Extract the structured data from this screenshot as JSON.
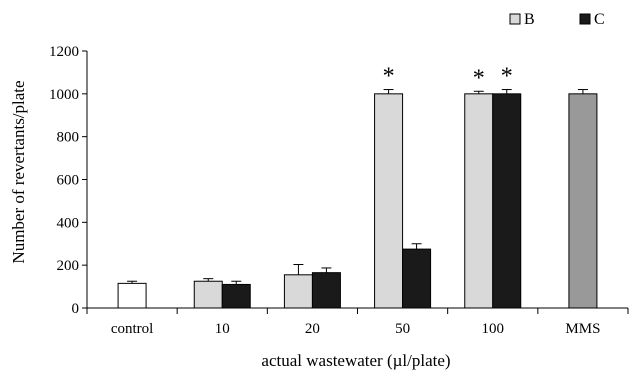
{
  "chart_data": {
    "type": "bar",
    "xlabel": "actual wastewater (µl/plate)",
    "ylabel": "Number of revertants/plate",
    "ylim": [
      0,
      1200
    ],
    "yticks": [
      0,
      200,
      400,
      600,
      800,
      1000,
      1200
    ],
    "categories": [
      "control",
      "10",
      "20",
      "50",
      "100",
      "MMS"
    ],
    "legend": {
      "position": "top-right",
      "entries": [
        "B",
        "C"
      ]
    },
    "bars": [
      {
        "category": "control",
        "series": "control",
        "value": 115,
        "error": 10,
        "color": "#ffffff",
        "significant": false
      },
      {
        "category": "10",
        "series": "B",
        "value": 125,
        "error": 12,
        "color": "#d9d9d9",
        "significant": false
      },
      {
        "category": "10",
        "series": "C",
        "value": 110,
        "error": 15,
        "color": "#1a1a1a",
        "significant": false
      },
      {
        "category": "20",
        "series": "B",
        "value": 155,
        "error": 48,
        "color": "#d9d9d9",
        "significant": false
      },
      {
        "category": "20",
        "series": "C",
        "value": 165,
        "error": 22,
        "color": "#1a1a1a",
        "significant": false
      },
      {
        "category": "50",
        "series": "B",
        "value": 1000,
        "error": 20,
        "color": "#d9d9d9",
        "significant": true
      },
      {
        "category": "50",
        "series": "C",
        "value": 275,
        "error": 25,
        "color": "#1a1a1a",
        "significant": false
      },
      {
        "category": "100",
        "series": "B",
        "value": 1000,
        "error": 12,
        "color": "#d9d9d9",
        "significant": true
      },
      {
        "category": "100",
        "series": "C",
        "value": 1000,
        "error": 20,
        "color": "#1a1a1a",
        "significant": true
      },
      {
        "category": "MMS",
        "series": "MMS",
        "value": 1000,
        "error": 20,
        "color": "#999999",
        "significant": false
      }
    ],
    "significance_marker": "*"
  }
}
